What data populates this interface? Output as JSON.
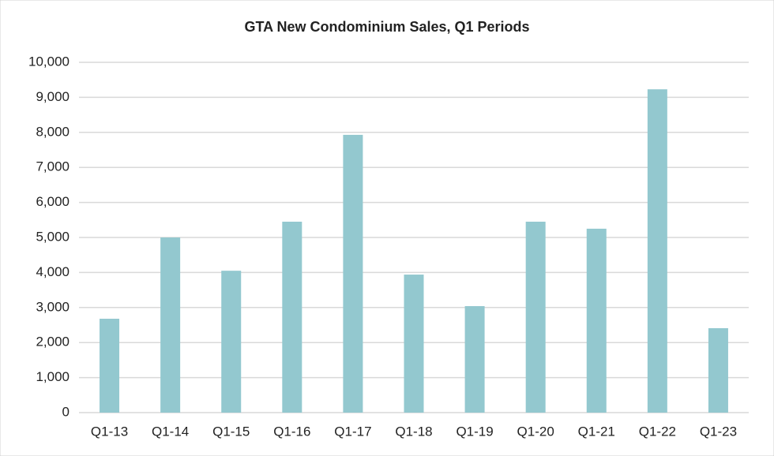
{
  "chart_data": {
    "type": "bar",
    "title": "GTA New Condominium Sales, Q1 Periods",
    "categories": [
      "Q1-13",
      "Q1-14",
      "Q1-15",
      "Q1-16",
      "Q1-17",
      "Q1-18",
      "Q1-19",
      "Q1-20",
      "Q1-21",
      "Q1-22",
      "Q1-23"
    ],
    "values": [
      2680,
      5000,
      4050,
      5450,
      7930,
      3940,
      3040,
      5450,
      5250,
      9230,
      2410
    ],
    "color": "#93c8cf",
    "ylim": [
      0,
      10000
    ],
    "yticks": [
      0,
      {
        "value": 1000,
        "label": "1,000"
      },
      {
        "value": 2000,
        "label": "2,000"
      },
      {
        "value": 3000,
        "label": "3,000"
      },
      {
        "value": 4000,
        "label": "4,000"
      },
      {
        "value": 5000,
        "label": "5,000"
      },
      {
        "value": 6000,
        "label": "6,000"
      },
      {
        "value": 7000,
        "label": "7,000"
      },
      {
        "value": 8000,
        "label": "8,000"
      },
      {
        "value": 9000,
        "label": "9,000"
      },
      {
        "value": 10000,
        "label": "10,000"
      }
    ],
    "grid": true
  }
}
